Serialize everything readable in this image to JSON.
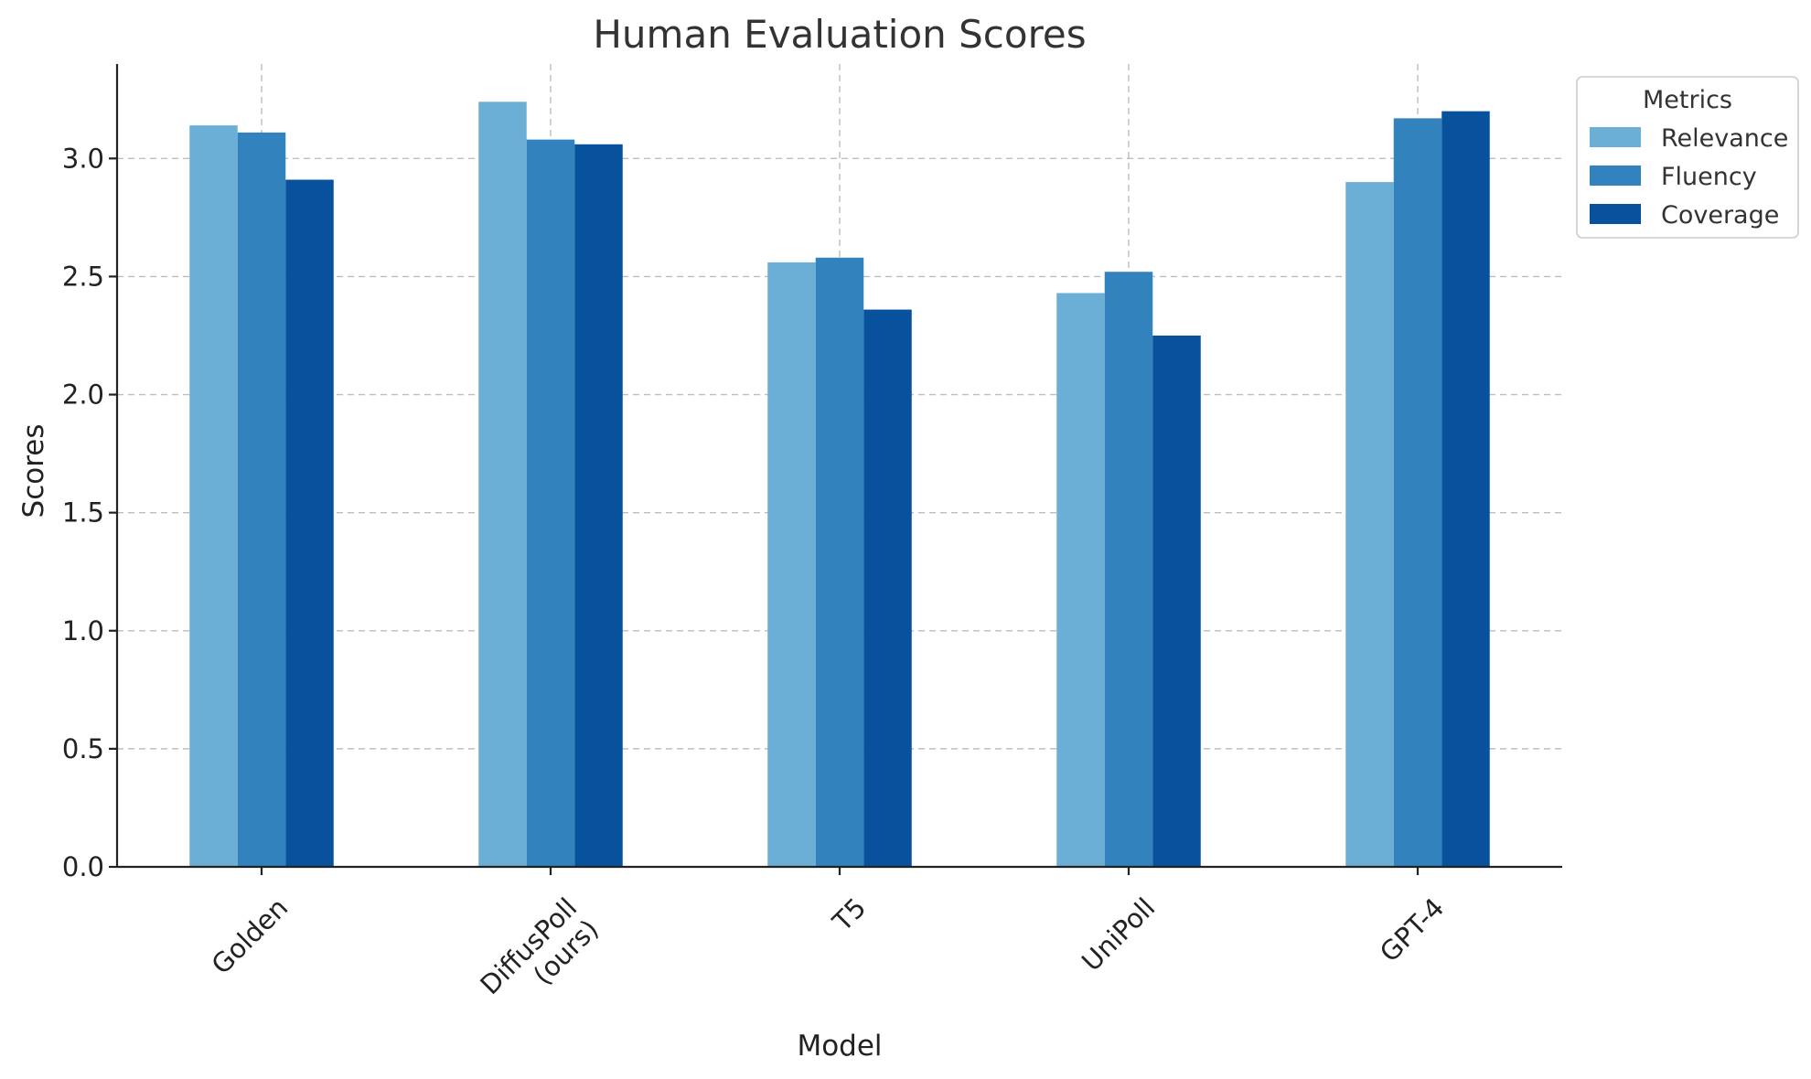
{
  "chart_data": {
    "type": "bar",
    "title": "Human Evaluation Scores",
    "xlabel": "Model",
    "ylabel": "Scores",
    "categories": [
      [
        "Golden"
      ],
      [
        "DiffusPoll",
        "(ours)"
      ],
      [
        "T5"
      ],
      [
        "UniPoll"
      ],
      [
        "GPT-4"
      ]
    ],
    "series": [
      {
        "name": "Relevance",
        "color": "#6baed6",
        "values": [
          3.14,
          3.24,
          2.56,
          2.43,
          2.9
        ]
      },
      {
        "name": "Fluency",
        "color": "#3182bd",
        "values": [
          3.11,
          3.08,
          2.58,
          2.52,
          3.17
        ]
      },
      {
        "name": "Coverage",
        "color": "#08519c",
        "values": [
          2.91,
          3.06,
          2.36,
          2.25,
          3.2
        ]
      }
    ],
    "ylim": [
      0,
      3.4
    ],
    "yticks": [
      "0.0",
      "0.5",
      "1.0",
      "1.5",
      "2.0",
      "2.5",
      "3.0"
    ],
    "grid": true,
    "legend": {
      "title": "Metrics",
      "placement": "outside-top-right"
    }
  }
}
